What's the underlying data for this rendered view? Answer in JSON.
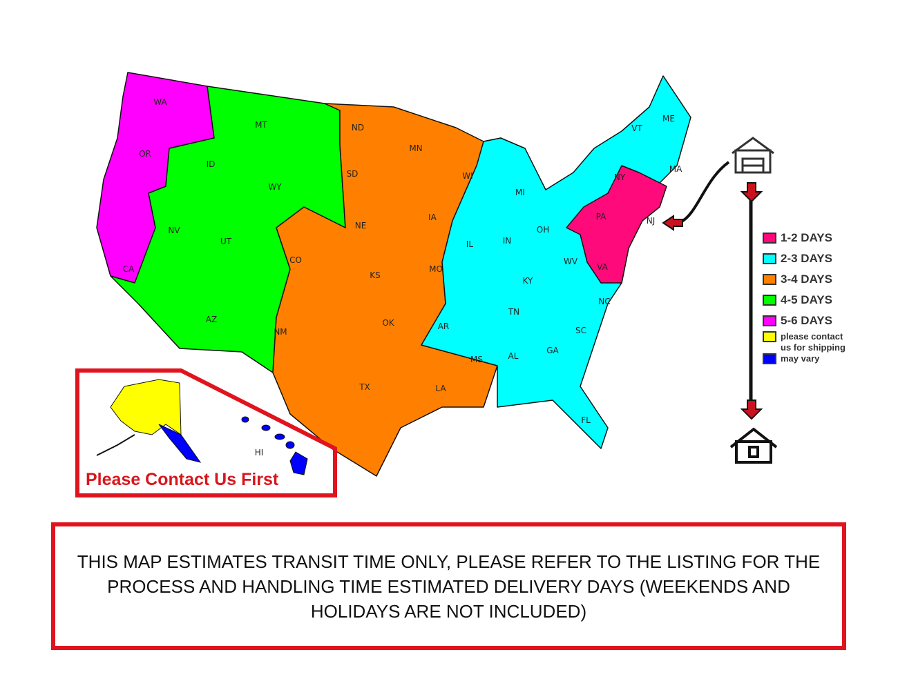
{
  "colors": {
    "1-2": "#ff0a7a",
    "2-3": "#00ffff",
    "3-4": "#ff8000",
    "4-5": "#00ff00",
    "5-6": "#ff00ff",
    "contact": "#ffff00",
    "vary": "#0000ff",
    "frame": "#e0141e"
  },
  "states": [
    "WA",
    "OR",
    "CA",
    "ID",
    "NV",
    "MT",
    "WY",
    "UT",
    "AZ",
    "CO",
    "NM",
    "ND",
    "SD",
    "NE",
    "KS",
    "OK",
    "TX",
    "MN",
    "IA",
    "MO",
    "AR",
    "LA",
    "WI",
    "IL",
    "MI",
    "IN",
    "OH",
    "KY",
    "TN",
    "MS",
    "AL",
    "GA",
    "FL",
    "SC",
    "NC",
    "VA",
    "WV",
    "PA",
    "NY",
    "VT",
    "ME",
    "MA",
    "NJ",
    "AK",
    "HI"
  ],
  "legend": [
    {
      "label": "1-2 DAYS",
      "color": "#ff0a7a"
    },
    {
      "label": "2-3 DAYS",
      "color": "#00ffff"
    },
    {
      "label": "3-4 DAYS",
      "color": "#ff8000"
    },
    {
      "label": "4-5 DAYS",
      "color": "#00ff00"
    },
    {
      "label": "5-6 DAYS",
      "color": "#ff00ff"
    },
    {
      "label": "please contact",
      "color": "#ffff00"
    },
    {
      "label": "us for shipping",
      "color": ""
    },
    {
      "label": "may vary",
      "color": "#0000ff"
    }
  ],
  "icons": {
    "origin": "warehouse-icon",
    "destination": "house-icon"
  },
  "inset_note": "Please Contact Us First",
  "notice": "THIS MAP ESTIMATES TRANSIT TIME ONLY, PLEASE REFER TO THE LISTING FOR THE PROCESS AND HANDLING TIME ESTIMATED DELIVERY DAYS (WEEKENDS AND HOLIDAYS ARE NOT INCLUDED)"
}
